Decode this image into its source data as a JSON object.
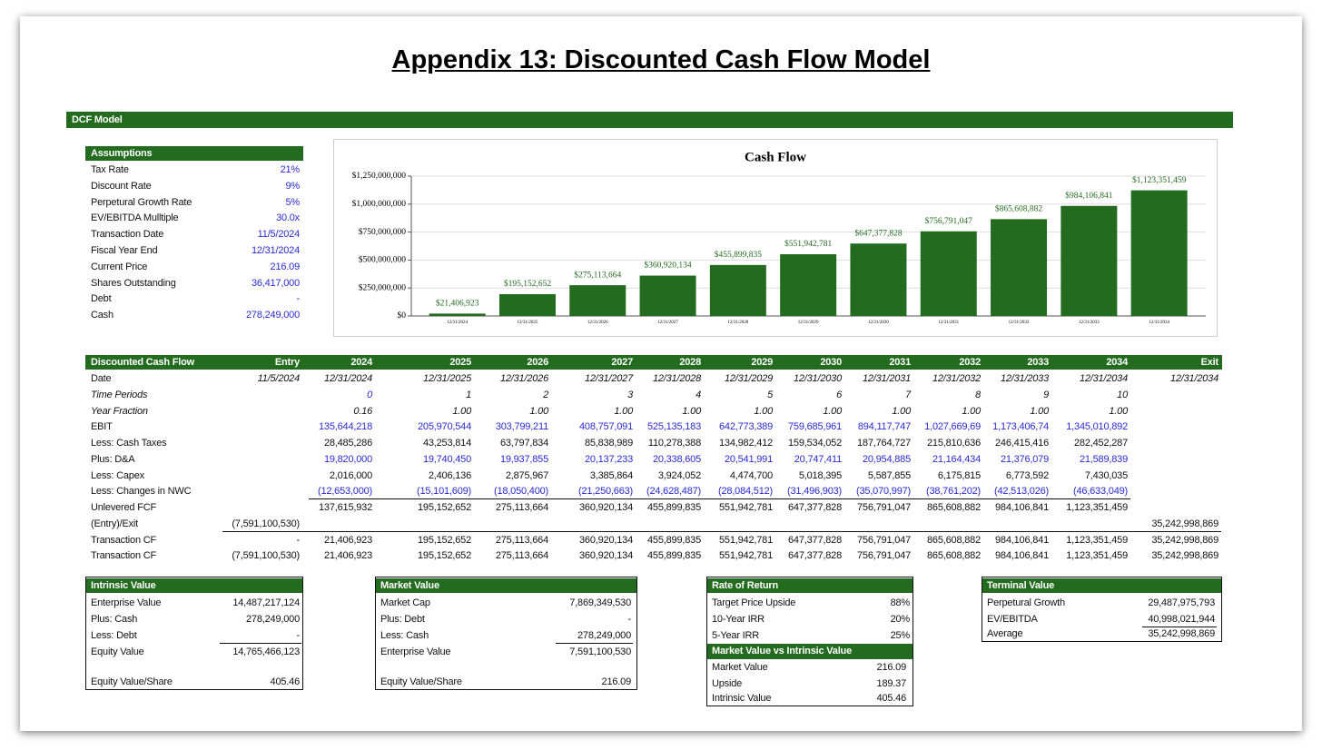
{
  "title": "Appendix 13: Discounted Cash Flow Model",
  "section": "DCF Model",
  "assumptions": {
    "title": "Assumptions",
    "rows": [
      [
        "Tax Rate",
        "21%"
      ],
      [
        "Discount Rate",
        "9%"
      ],
      [
        "Perpetural Growth Rate",
        "5%"
      ],
      [
        "EV/EBITDA Mulltiple",
        "30.0x"
      ],
      [
        "Transaction Date",
        "11/5/2024"
      ],
      [
        "Fiscal Year End",
        "12/31/2024"
      ],
      [
        "Current Price",
        "216.09"
      ],
      [
        "Shares Outstanding",
        "36,417,000"
      ],
      [
        "Debt",
        "-"
      ],
      [
        "Cash",
        "278,249,000"
      ]
    ]
  },
  "chart_data": {
    "type": "bar",
    "title": "Cash Flow",
    "categories": [
      "12/31/2024",
      "12/31/2025",
      "12/31/2026",
      "12/31/2027",
      "12/31/2028",
      "12/31/2029",
      "12/31/2030",
      "12/31/2031",
      "12/31/2032",
      "12/31/2033",
      "12/31/2034"
    ],
    "values": [
      21406923,
      195152652,
      275113664,
      360920134,
      455899835,
      551942781,
      647377828,
      756791047,
      865608882,
      984106841,
      1123351459
    ],
    "value_labels": [
      "$21,406,923",
      "$195,152,652",
      "$275,113,664",
      "$360,920,134",
      "$455,899,835",
      "$551,942,781",
      "$647,377,828",
      "$756,791,047",
      "$865,608,882",
      "$984,106,841",
      "$1,123,351,459"
    ],
    "color": "#236b1e",
    "ylim": [
      0,
      1250000000
    ],
    "yticks": [
      {
        "value": 0,
        "label": "$0"
      },
      {
        "value": 250000000,
        "label": "$250,000,000"
      },
      {
        "value": 500000000,
        "label": "$500,000,000"
      },
      {
        "value": 750000000,
        "label": "$750,000,000"
      },
      {
        "value": 1000000000,
        "label": "$1,000,000,000"
      },
      {
        "value": 1250000000,
        "label": "$1,250,000,000"
      }
    ],
    "grid": true
  },
  "dcf": {
    "header": [
      "Discounted Cash Flow",
      "Entry",
      "2024",
      "2025",
      "2026",
      "2027",
      "2028",
      "2029",
      "2030",
      "2031",
      "2032",
      "2033",
      "2034",
      "Exit"
    ],
    "rows": [
      [
        "Date",
        "11/5/2024",
        "12/31/2024",
        "12/31/2025",
        "12/31/2026",
        "12/31/2027",
        "12/31/2028",
        "12/31/2029",
        "12/31/2030",
        "12/31/2031",
        "12/31/2032",
        "12/31/2033",
        "12/31/2034",
        "12/31/2034"
      ],
      [
        "Time Periods",
        null,
        "0",
        "1",
        "2",
        "3",
        "4",
        "5",
        "6",
        "7",
        "8",
        "9",
        "10",
        null
      ],
      [
        "Year Fraction",
        null,
        "0.16",
        "1.00",
        "1.00",
        "1.00",
        "1.00",
        "1.00",
        "1.00",
        "1.00",
        "1.00",
        "1.00",
        "1.00",
        null
      ],
      [
        "EBIT",
        null,
        "135,644,218",
        "205,970,544",
        "303,799,211",
        "408,757,091",
        "525,135,183",
        "642,773,389",
        "759,685,961",
        "894,117,747",
        "1,027,669,69",
        "1,173,406,74",
        "1,345,010,892",
        null
      ],
      [
        "Less: Cash Taxes",
        null,
        "28,485,286",
        "43,253,814",
        "63,797,834",
        "85,838,989",
        "110,278,388",
        "134,982,412",
        "159,534,052",
        "187,764,727",
        "215,810,636",
        "246,415,416",
        "282,452,287",
        null
      ],
      [
        "Plus: D&A",
        null,
        "19,820,000",
        "19,740,450",
        "19,937,855",
        "20,137,233",
        "20,338,605",
        "20,541,991",
        "20,747,411",
        "20,954,885",
        "21,164,434",
        "21,376,079",
        "21,589,839",
        null
      ],
      [
        "Less: Capex",
        null,
        "2,016,000",
        "2,406,136",
        "2,875,967",
        "3,385,864",
        "3,924,052",
        "4,474,700",
        "5,018,395",
        "5,587,855",
        "6,175,815",
        "6,773,592",
        "7,430,035",
        null
      ],
      [
        "Less: Changes in NWC",
        null,
        "(12,653,000)",
        "(15,101,609)",
        "(18,050,400)",
        "(21,250,663)",
        "(24,628,487)",
        "(28,084,512)",
        "(31,496,903)",
        "(35,070,997)",
        "(38,761,202)",
        "(42,513,026)",
        "(46,633,049)",
        null
      ],
      [
        "Unlevered FCF",
        null,
        "137,615,932",
        "195,152,652",
        "275,113,664",
        "360,920,134",
        "455,899,835",
        "551,942,781",
        "647,377,828",
        "756,791,047",
        "865,608,882",
        "984,106,841",
        "1,123,351,459",
        null
      ],
      [
        "(Entry)/Exit",
        "(7,591,100,530)",
        null,
        null,
        null,
        null,
        null,
        null,
        null,
        null,
        null,
        null,
        null,
        "35,242,998,869"
      ],
      [
        "Transaction CF",
        "-",
        "21,406,923",
        "195,152,652",
        "275,113,664",
        "360,920,134",
        "455,899,835",
        "551,942,781",
        "647,377,828",
        "756,791,047",
        "865,608,882",
        "984,106,841",
        "1,123,351,459",
        "35,242,998,869"
      ],
      [
        "Transaction CF",
        "(7,591,100,530)",
        "21,406,923",
        "195,152,652",
        "275,113,664",
        "360,920,134",
        "455,899,835",
        "551,942,781",
        "647,377,828",
        "756,791,047",
        "865,608,882",
        "984,106,841",
        "1,123,351,459",
        "35,242,998,869"
      ]
    ]
  },
  "intrinsic_value": {
    "title": "Intrinsic Value",
    "rows": [
      [
        "Enterprise Value",
        "14,487,217,124"
      ],
      [
        "Plus: Cash",
        "278,249,000"
      ],
      [
        "Less: Debt",
        "-"
      ],
      [
        "Equity Value",
        "14,765,466,123"
      ],
      [
        "Equity Value/Share",
        "405.46"
      ]
    ]
  },
  "market_value": {
    "title": "Market Value",
    "rows": [
      [
        "Market Cap",
        "7,869,349,530"
      ],
      [
        "Plus: Debt",
        "-"
      ],
      [
        "Less: Cash",
        "278,249,000"
      ],
      [
        "Enterprise Value",
        "7,591,100,530"
      ],
      [
        "Equity Value/Share",
        "216.09"
      ]
    ]
  },
  "rate_of_return": {
    "title": "Rate of Return",
    "rows": [
      [
        "Target Price Upside",
        "88%"
      ],
      [
        "10-Year IRR",
        "20%"
      ],
      [
        "5-Year IRR",
        "25%"
      ]
    ],
    "subtitle": "Market Value vs Intrinsic Value",
    "sub_rows": [
      [
        "Market Value",
        "216.09"
      ],
      [
        "Upside",
        "189.37"
      ],
      [
        "Intrinsic Value",
        "405.46"
      ]
    ]
  },
  "terminal_value": {
    "title": "Terminal Value",
    "rows": [
      [
        "Perpetural Growth",
        "29,487,975,793"
      ],
      [
        "EV/EBITDA",
        "40,998,021,944"
      ],
      [
        "Average",
        "35,242,998,869"
      ]
    ]
  }
}
